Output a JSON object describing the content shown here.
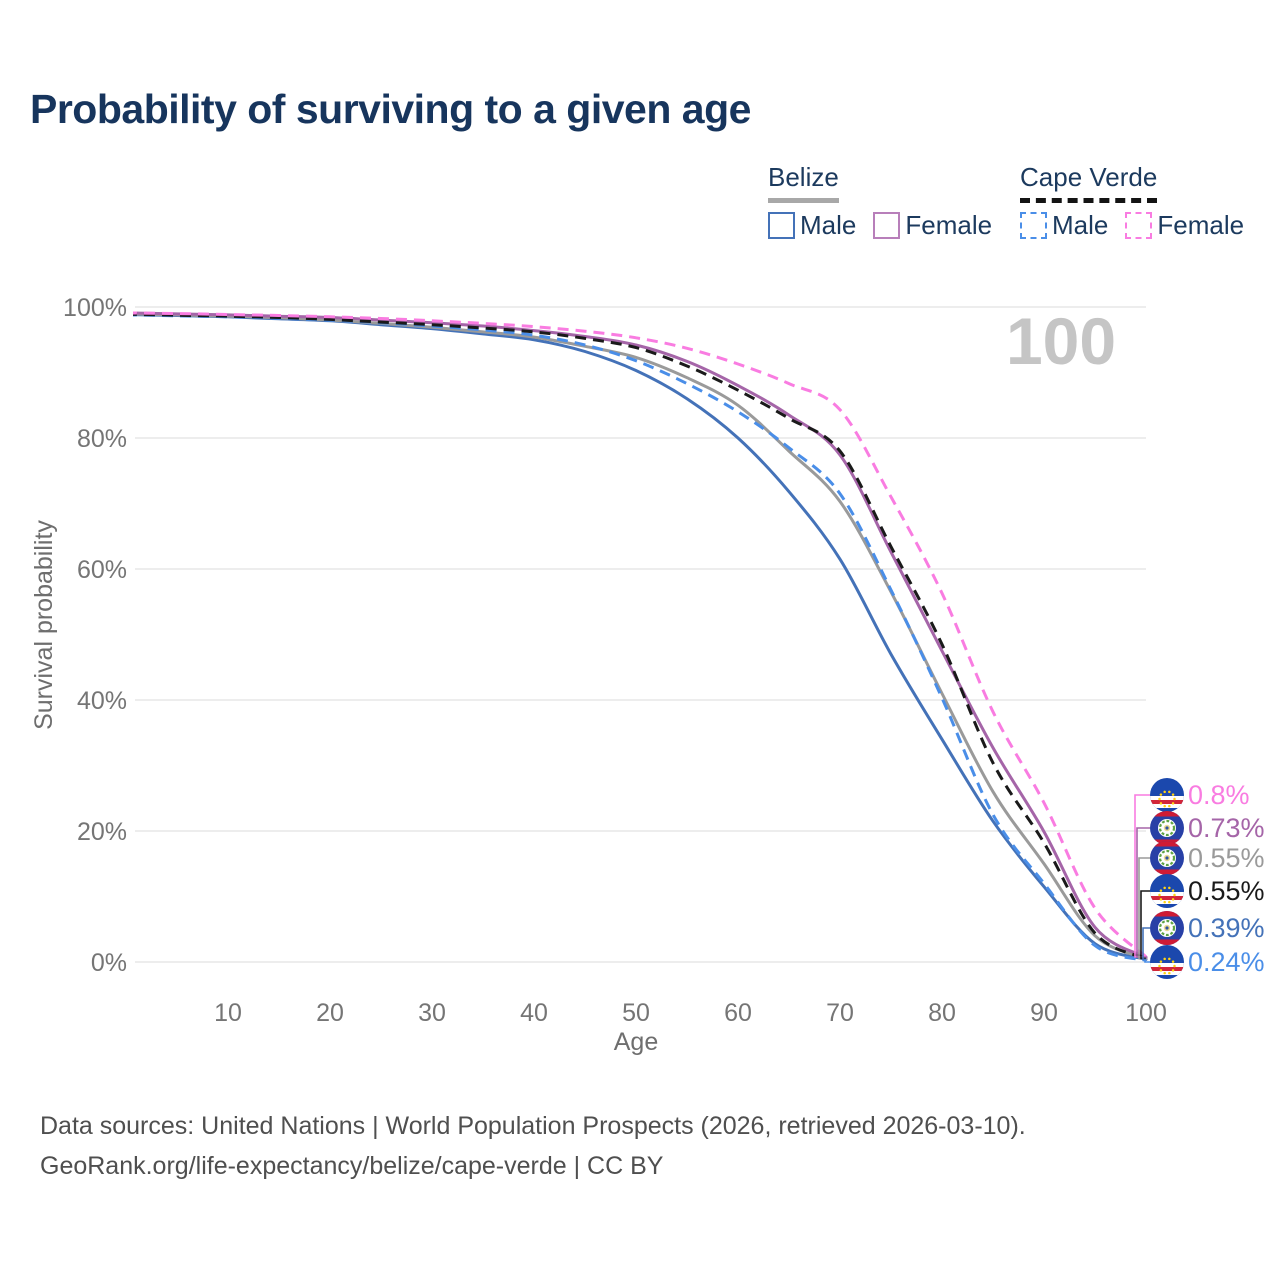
{
  "title": "Probability of surviving to a given age",
  "watermark_age": "100",
  "legend": {
    "groups": [
      {
        "country": "Belize",
        "line_style": "solid",
        "underline_color": "#a8a8a8",
        "items": [
          {
            "label": "Male",
            "color": "#4472b8"
          },
          {
            "label": "Female",
            "color": "#b87fba"
          }
        ]
      },
      {
        "country": "Cape Verde",
        "line_style": "dashed",
        "underline_color": "#141414",
        "items": [
          {
            "label": "Male",
            "color": "#4a8ee8"
          },
          {
            "label": "Female",
            "color": "#f97ce1"
          }
        ]
      }
    ]
  },
  "chart_data": {
    "type": "line",
    "title": "Probability of surviving to a given age",
    "xlabel": "Age",
    "ylabel": "Survival probability",
    "xlim": [
      0,
      100
    ],
    "ylim": [
      0,
      100
    ],
    "grid": "horizontal",
    "legend_position": "top-right",
    "x_ticks": [
      10,
      20,
      30,
      40,
      50,
      60,
      70,
      80,
      90,
      100
    ],
    "y_ticks": [
      "0%",
      "20%",
      "40%",
      "60%",
      "80%",
      "100%"
    ],
    "x": [
      0,
      5,
      10,
      15,
      20,
      25,
      30,
      35,
      40,
      45,
      50,
      55,
      60,
      65,
      70,
      75,
      80,
      85,
      90,
      95,
      100
    ],
    "series": [
      {
        "name": "Belize Male",
        "country": "Belize",
        "sex": "Male",
        "color": "#4472b8",
        "dashed": false,
        "flag": "belize",
        "end_label": "0.39%",
        "values": [
          98.85,
          98.7,
          98.5,
          98.2,
          97.9,
          97.3,
          96.7,
          95.9,
          95.0,
          93.2,
          90.3,
          86.0,
          80.0,
          71.8,
          61.5,
          47.0,
          34.0,
          21.5,
          11.5,
          2.8,
          0.39
        ]
      },
      {
        "name": "Belize",
        "country": "Belize",
        "sex": "Both",
        "color": "#9a9a9a",
        "dashed": false,
        "flag": "belize",
        "end_label": "0.55%",
        "values": [
          98.95,
          98.8,
          98.6,
          98.35,
          98.0,
          97.5,
          96.9,
          96.2,
          95.4,
          94.0,
          92.3,
          89.2,
          85.0,
          78.0,
          70.3,
          56.5,
          41.0,
          26.0,
          15.0,
          4.0,
          0.55
        ]
      },
      {
        "name": "Belize Female",
        "country": "Belize",
        "sex": "Female",
        "color": "#a565a8",
        "dashed": false,
        "flag": "belize",
        "end_label": "0.73%",
        "values": [
          99.1,
          98.95,
          98.8,
          98.6,
          98.4,
          98.0,
          97.6,
          97.1,
          96.4,
          95.5,
          94.2,
          91.7,
          88.0,
          83.5,
          77.4,
          62.6,
          47.5,
          32.7,
          19.9,
          5.3,
          0.73
        ]
      },
      {
        "name": "Cape Verde Male",
        "country": "Cape Verde",
        "sex": "Male",
        "color": "#4a8ee8",
        "dashed": true,
        "flag": "cape-verde",
        "end_label": "0.24%",
        "values": [
          98.8,
          98.65,
          98.5,
          98.3,
          98.0,
          97.6,
          97.1,
          96.5,
          95.7,
          94.2,
          91.8,
          88.3,
          84.0,
          78.5,
          71.5,
          56.8,
          40.3,
          22.5,
          12.0,
          2.5,
          0.24
        ]
      },
      {
        "name": "Cape Verde",
        "country": "Cape Verde",
        "sex": "Both",
        "color": "#1a1a1a",
        "dashed": true,
        "flag": "cape-verde",
        "end_label": "0.55%",
        "values": [
          98.9,
          98.75,
          98.6,
          98.4,
          98.1,
          97.7,
          97.3,
          96.8,
          96.2,
          95.2,
          93.8,
          91.0,
          87.3,
          83.0,
          78.0,
          63.4,
          48.5,
          30.4,
          18.2,
          4.4,
          0.55
        ]
      },
      {
        "name": "Cape Verde Female",
        "country": "Cape Verde",
        "sex": "Female",
        "color": "#f97ce1",
        "dashed": true,
        "flag": "cape-verde",
        "end_label": "0.8%",
        "values": [
          99.1,
          99.0,
          98.85,
          98.7,
          98.5,
          98.25,
          97.9,
          97.5,
          97.0,
          96.3,
          95.3,
          93.7,
          91.3,
          88.3,
          84.3,
          71.0,
          56.3,
          38.2,
          24.3,
          8.2,
          0.8
        ]
      }
    ]
  },
  "footer": {
    "line1": "Data sources: United Nations | World Population Prospects (2026, retrieved 2026-03-10).",
    "line2": "GeoRank.org/life-expectancy/belize/cape-verde | CC BY"
  }
}
